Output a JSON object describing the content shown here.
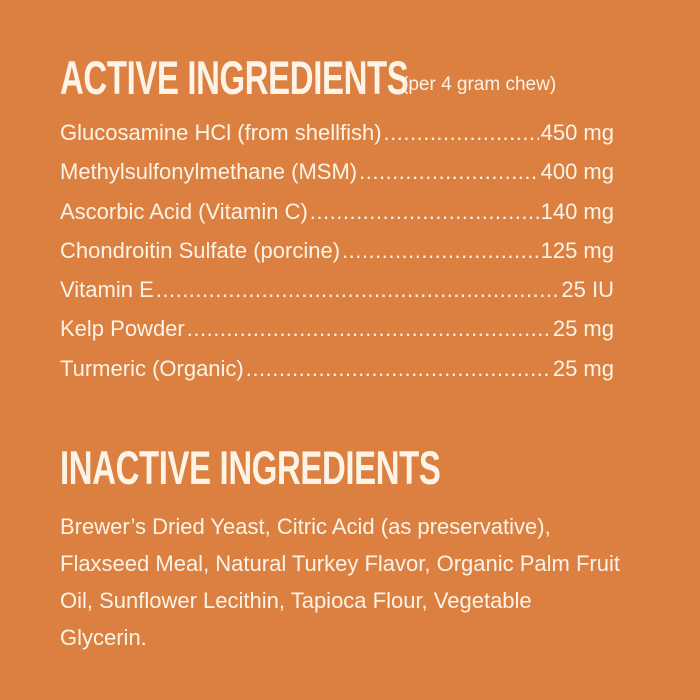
{
  "active": {
    "title": "ACTIVE INGREDIENTS",
    "note": "(per 4 gram chew)",
    "items": [
      {
        "name": "Glucosamine HCl (from shellfish)",
        "amount": "450 mg"
      },
      {
        "name": "Methylsulfonylmethane (MSM)",
        "amount": "400 mg"
      },
      {
        "name": "Ascorbic Acid (Vitamin C)",
        "amount": "140 mg"
      },
      {
        "name": "Chondroitin Sulfate (porcine)",
        "amount": "125 mg"
      },
      {
        "name": "Vitamin E",
        "amount": "25 IU"
      },
      {
        "name": "Kelp Powder",
        "amount": "25 mg"
      },
      {
        "name": "Turmeric (Organic)",
        "amount": "25 mg"
      }
    ]
  },
  "inactive": {
    "title": "INACTIVE INGREDIENTS",
    "text": "Brewer’s Dried Yeast, Citric Acid (as preservative), Flaxseed Meal, Natural Turkey Flavor, Organic Palm Fruit Oil, Sunflower Lecithin, Tapioca Flour, Vegetable Glycerin."
  },
  "colors": {
    "background": "#DB8041",
    "text": "#FDF3E6"
  }
}
